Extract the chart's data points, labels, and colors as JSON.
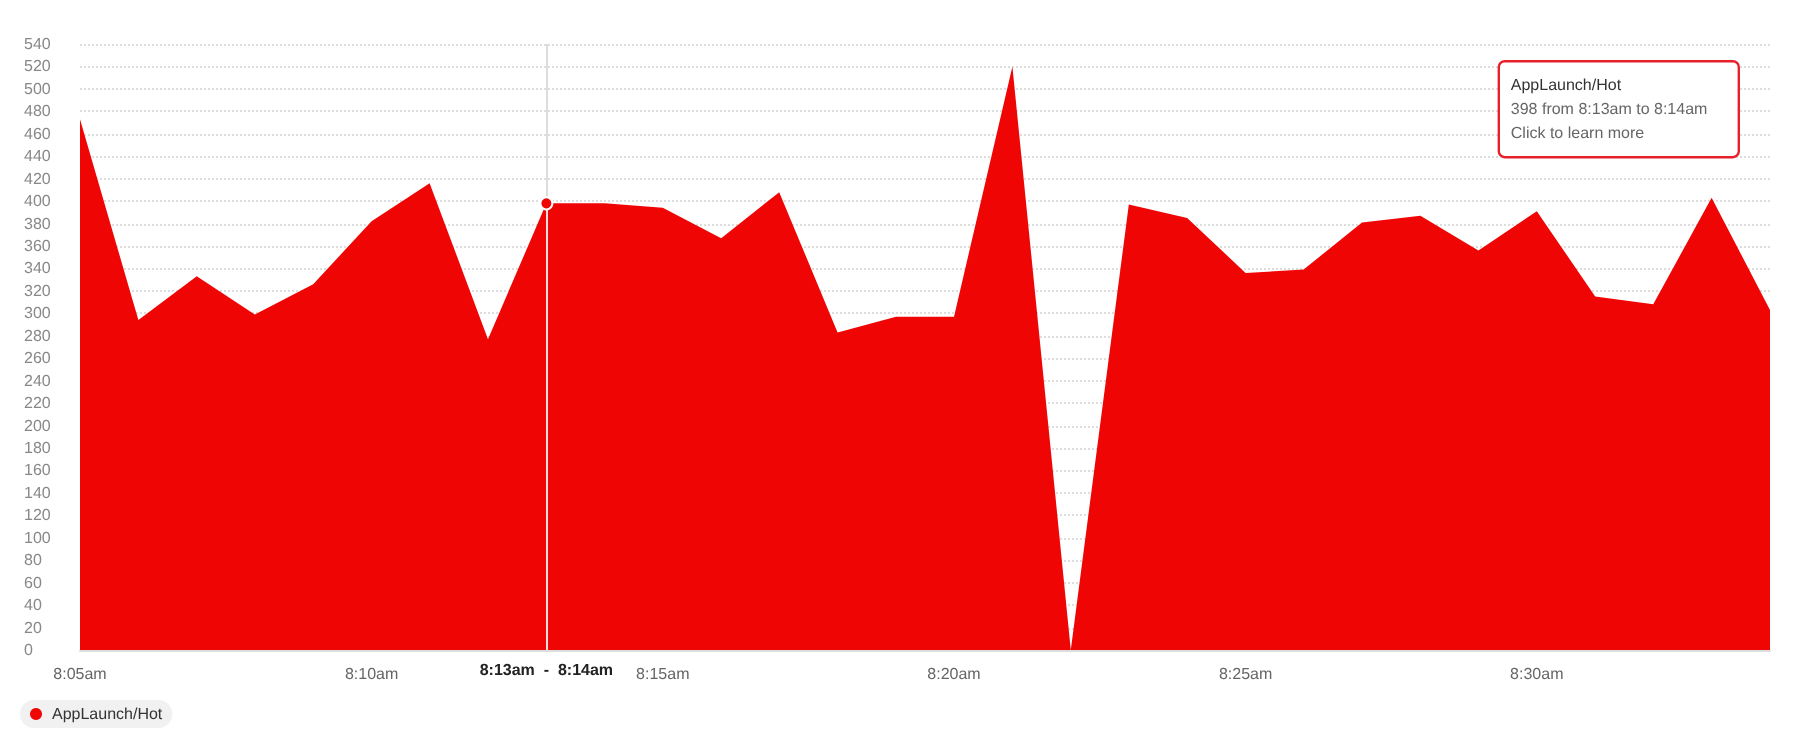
{
  "chart_data": {
    "type": "area",
    "x": [
      8.0833,
      8.1,
      8.1167,
      8.1333,
      8.15,
      8.1667,
      8.1833,
      8.2,
      8.2167,
      8.2333,
      8.25,
      8.2667,
      8.2833,
      8.3,
      8.3167,
      8.3333,
      8.35,
      8.3667,
      8.3833,
      8.4,
      8.4167,
      8.4333,
      8.45,
      8.4667,
      8.4833,
      8.5,
      8.5167,
      8.5333,
      8.55,
      8.5667
    ],
    "series": [
      {
        "name": "AppLaunch/Hot",
        "color": "#f00505",
        "values": [
          473,
          294,
          333,
          299,
          326,
          382,
          416,
          277,
          398,
          398,
          394,
          367,
          408,
          283,
          297,
          297,
          520,
          0,
          397,
          385,
          336,
          339,
          381,
          387,
          356,
          391,
          315,
          308,
          403,
          303
        ]
      }
    ],
    "xlim": [
      8.0833,
      8.5667
    ],
    "xticks": [
      {
        "value": 8.0833,
        "label": "8:05am"
      },
      {
        "value": 8.1667,
        "label": "8:10am"
      },
      {
        "value": 8.25,
        "label": "8:15am"
      },
      {
        "value": 8.3333,
        "label": "8:20am"
      },
      {
        "value": 8.4167,
        "label": "8:25am"
      },
      {
        "value": 8.5,
        "label": "8:30am"
      }
    ],
    "ylim": [
      0,
      540
    ],
    "yticks": [
      0,
      20,
      40,
      60,
      80,
      100,
      120,
      140,
      160,
      180,
      200,
      220,
      240,
      260,
      280,
      300,
      320,
      340,
      360,
      380,
      400,
      420,
      440,
      460,
      480,
      500,
      520,
      540
    ],
    "ref_lines": [
      {
        "axis": "x",
        "value": 8.2167,
        "label": "8:13am  -  8:14am",
        "color": "#dddddd"
      }
    ],
    "annotations": [
      "AppLaunch/Hot",
      "398 from 8:13am to 8:14am",
      "Click to learn more"
    ],
    "grid": "y",
    "legend": "bottom left"
  }
}
